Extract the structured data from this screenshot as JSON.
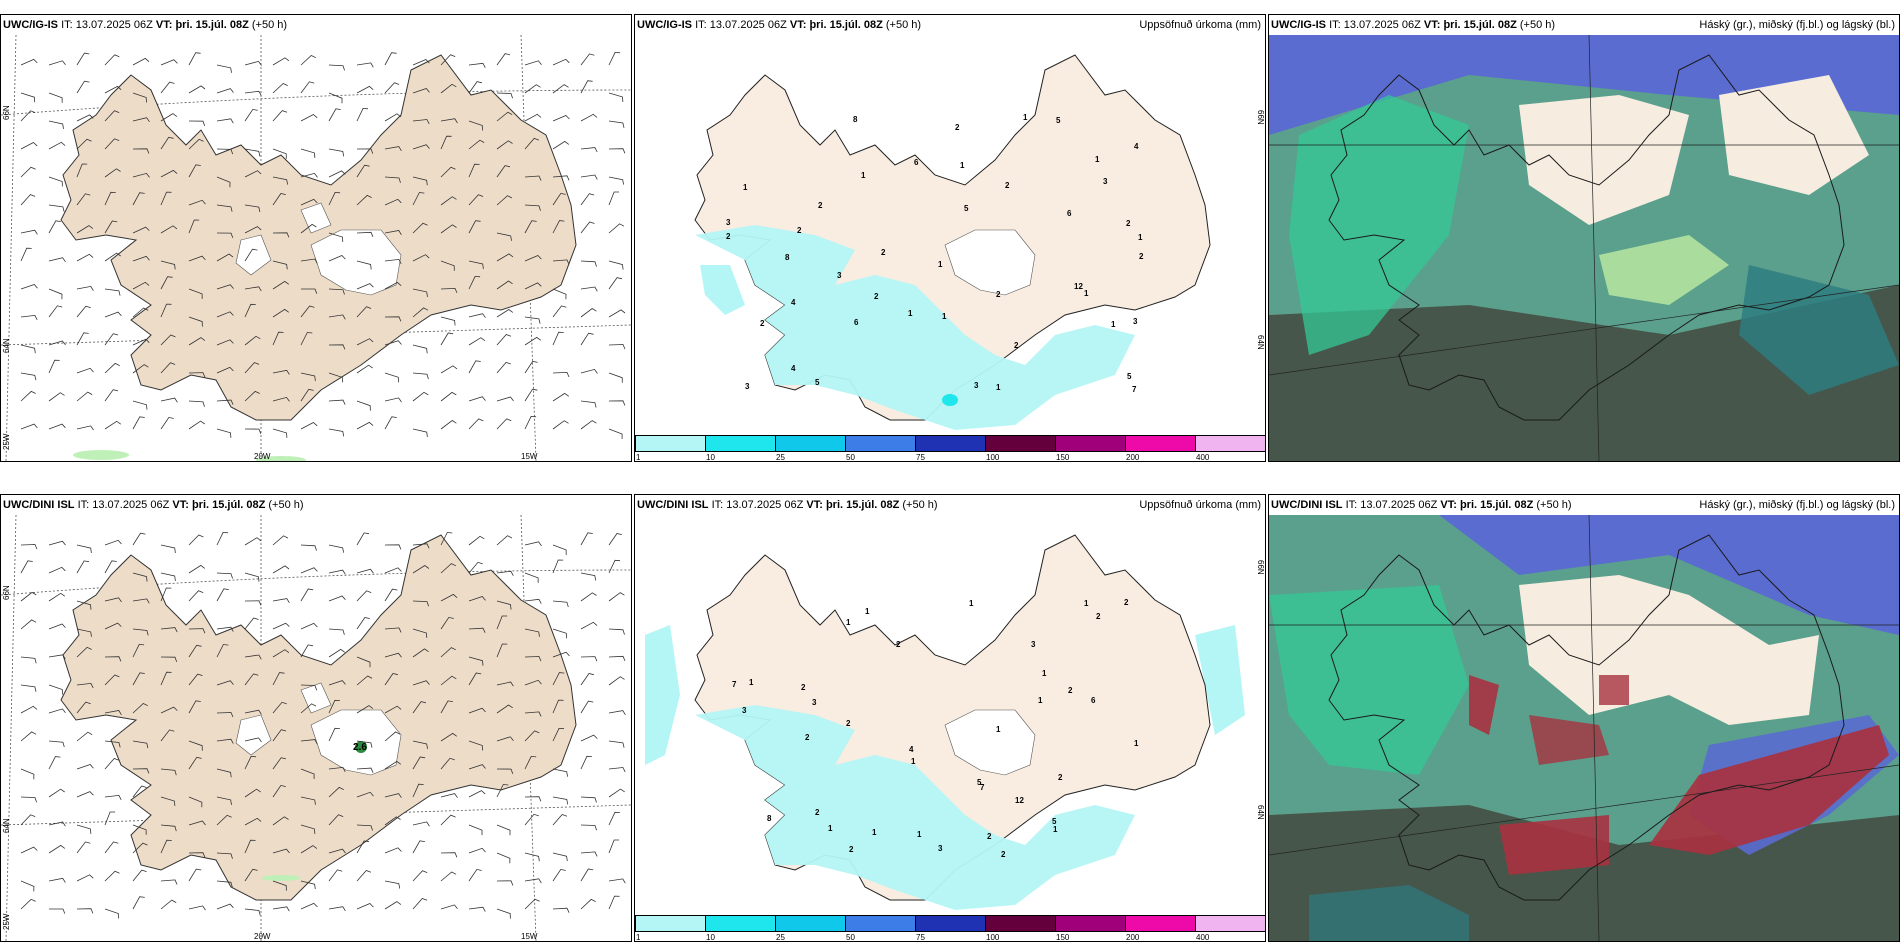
{
  "rows": [
    {
      "model": "UWC/IG-IS",
      "it_label": "IT:",
      "it_value": "13.07.2025 06Z",
      "vt_label": "VT:",
      "vt_value": "þri. 15.júl. 08Z",
      "lead": "(+50 h)"
    },
    {
      "model": "UWC/DINI ISL",
      "it_label": "IT:",
      "it_value": "13.07.2025 06Z",
      "vt_label": "VT:",
      "vt_value": "þri. 15.júl. 08Z",
      "lead": "(+50 h)"
    }
  ],
  "panels": {
    "wind": {
      "lon_labels": [
        "20W",
        "15W"
      ],
      "lat_labels": [
        "66N",
        "64N",
        "25W"
      ],
      "dini_marker": "2.6"
    },
    "precip": {
      "title_right": "Uppsöfnuð úrkoma (mm)",
      "lat_labels": [
        "66N",
        "64N"
      ],
      "colorbar": {
        "ticks": [
          "1",
          "10",
          "25",
          "50",
          "75",
          "100",
          "150",
          "200",
          "400"
        ],
        "colors": [
          "#b4f5f5",
          "#1ee6ec",
          "#10c8ea",
          "#3c7de8",
          "#2032b4",
          "#64003c",
          "#a0007a",
          "#ee0aa8",
          "#f0b4f0"
        ]
      },
      "ig_values": [
        "1",
        "2",
        "2",
        "1",
        "2",
        "3",
        "2",
        "1",
        "1",
        "1",
        "2",
        "1",
        "6",
        "6",
        "2",
        "1",
        "3",
        "3",
        "8",
        "6",
        "5",
        "1",
        "4",
        "4",
        "5",
        "5",
        "3",
        "2",
        "3",
        "4",
        "5",
        "7",
        "8",
        "2",
        "2",
        "2",
        "2",
        "2",
        "3",
        "12",
        "1",
        "1",
        "1",
        "1"
      ],
      "dini_values": [
        "2",
        "1",
        "2",
        "2",
        "2",
        "2",
        "1",
        "2",
        "1",
        "1",
        "8",
        "7",
        "4",
        "5",
        "1",
        "1",
        "3",
        "2",
        "2",
        "6",
        "5",
        "7",
        "2",
        "1",
        "1",
        "1",
        "2",
        "3",
        "3",
        "2",
        "12",
        "2",
        "3",
        "1",
        "1",
        "1",
        "1",
        "1"
      ]
    },
    "clouds": {
      "title_right": "Háský (gr.), miðský (fj.bl.) og lágský (bl.)"
    }
  },
  "colors": {
    "land": "#eddcc8",
    "land_light": "#f6ece0",
    "precip_cyan": "#b4f5f5",
    "cloud_low": "#5a6cd0",
    "cloud_mid": "#5aa08c",
    "cloud_high": "#34c896",
    "cloud_dark": "#46564a",
    "cloud_red": "#a83240"
  }
}
